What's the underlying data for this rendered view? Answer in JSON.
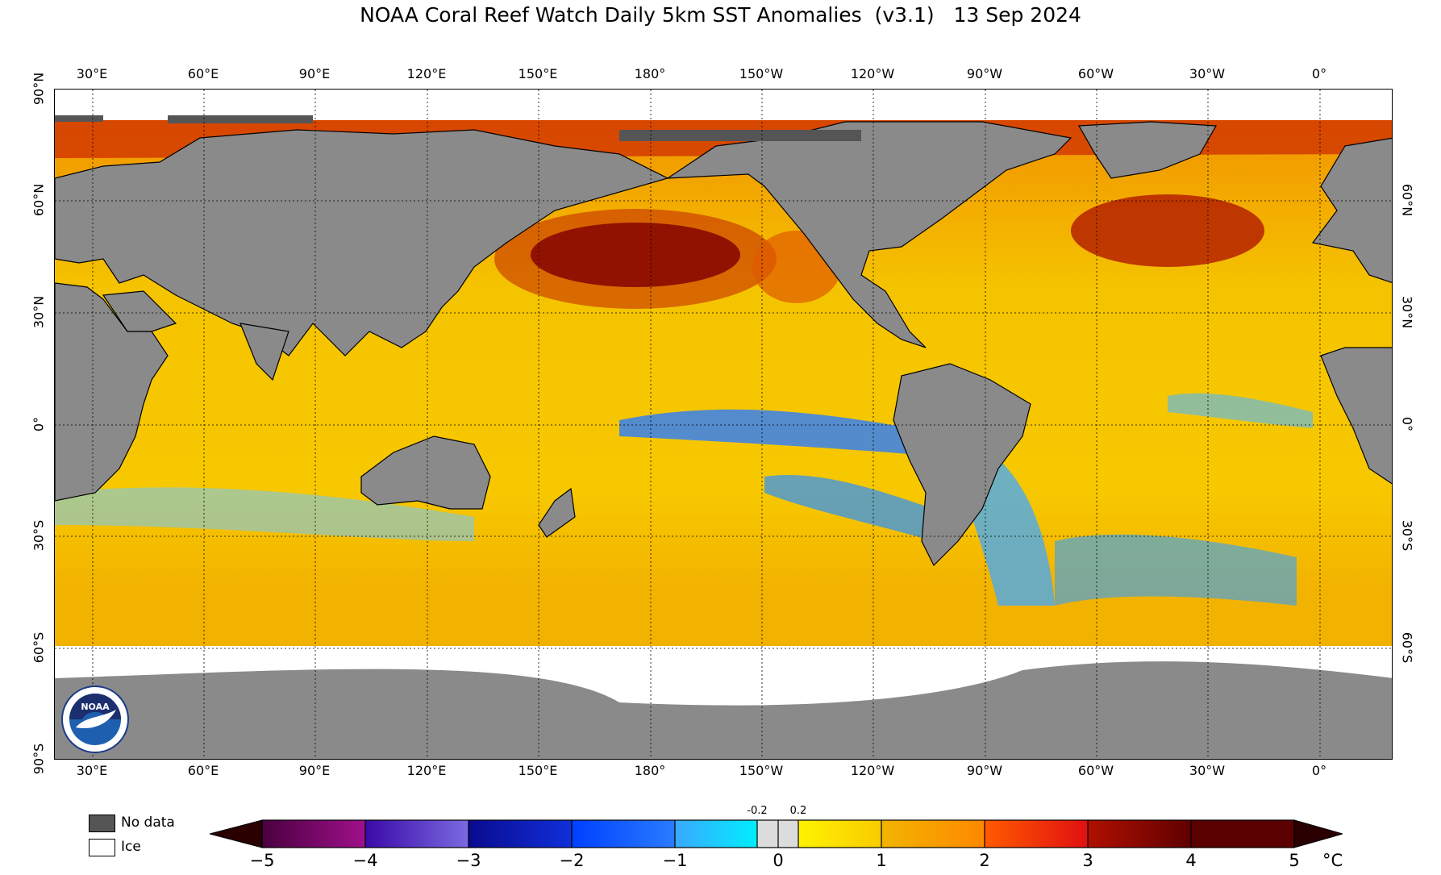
{
  "title": "NOAA Coral Reef Watch Daily 5km SST Anomalies  (v3.1)   13 Sep 2024",
  "map": {
    "lon_labels": [
      "30°E",
      "60°E",
      "90°E",
      "120°E",
      "150°E",
      "180°",
      "150°W",
      "120°W",
      "90°W",
      "60°W",
      "30°W",
      "0°"
    ],
    "lat_labels_left": [
      "90°N",
      "60°N",
      "30°N",
      "0°",
      "30°S",
      "60°S",
      "90°S"
    ],
    "lat_labels_right": [
      "60°N",
      "30°N",
      "0°",
      "30°S",
      "60°S"
    ],
    "colors": {
      "land": "#8a8a8a",
      "no_data": "#555555",
      "ice": "#ffffff",
      "ocean_warm": "#f5c000"
    }
  },
  "legend": {
    "no_data_label": "No data",
    "ice_label": "Ice"
  },
  "colorbar": {
    "ticks": [
      "−5",
      "−4",
      "−3",
      "−2",
      "−1",
      "0",
      "1",
      "2",
      "3",
      "4",
      "5"
    ],
    "small_ticks": [
      "-0.2",
      "0.2"
    ],
    "unit": "°C",
    "range": [
      -5,
      5
    ]
  },
  "logo": {
    "text": "NOAA",
    "icon": "noaa-logo-icon"
  }
}
